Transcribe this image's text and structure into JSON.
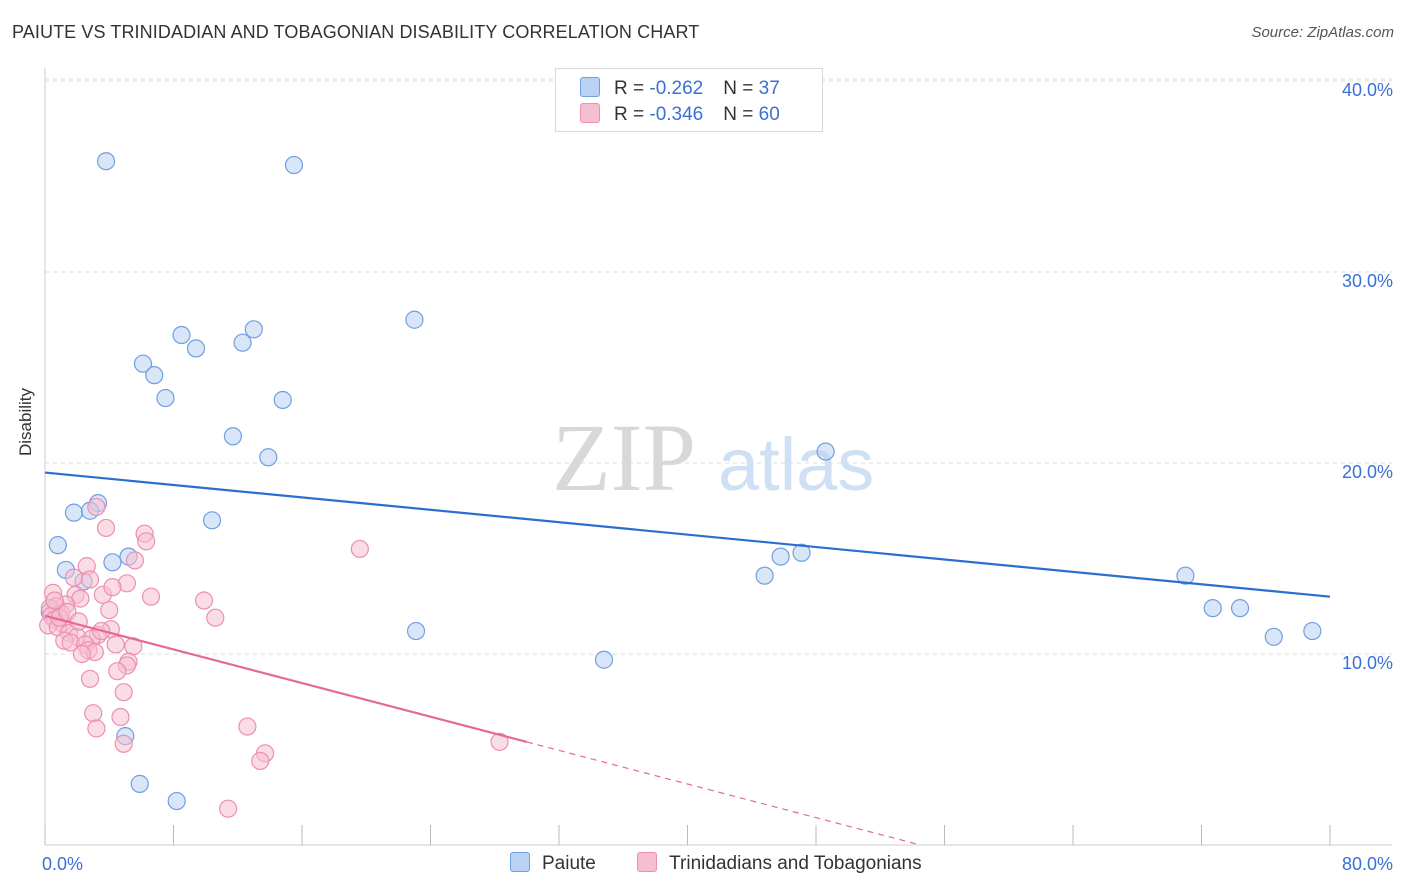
{
  "header": {
    "title": "PAIUTE VS TRINIDADIAN AND TOBAGONIAN DISABILITY CORRELATION CHART",
    "source": "Source: ZipAtlas.com"
  },
  "watermark": {
    "zip": "ZIP",
    "atlas": "atlas"
  },
  "legend": {
    "series1": {
      "r_label": "R = ",
      "r_value": "-0.262",
      "n_label": "N = ",
      "n_value": "37"
    },
    "series2": {
      "r_label": "R = ",
      "r_value": "-0.346",
      "n_label": "N = ",
      "n_value": "60"
    }
  },
  "colors": {
    "blue_fill": "#b9d1f2",
    "blue_stroke": "#6f9fe0",
    "blue_line": "#2a6fd0",
    "pink_fill": "#f6bfd0",
    "pink_stroke": "#ec8fb0",
    "pink_line": "#e46a95",
    "tick_label": "#3a6fd8",
    "grid": "#dddddd"
  },
  "chart_data": {
    "type": "scatter",
    "title": "PAIUTE VS TRINIDADIAN AND TOBAGONIAN DISABILITY CORRELATION CHART",
    "xlabel": "",
    "ylabel": "Disability",
    "xlim": [
      0,
      80
    ],
    "ylim": [
      0,
      40
    ],
    "x_tick_labels": [
      {
        "value": 0,
        "label": "0.0%"
      },
      {
        "value": 80,
        "label": "80.0%"
      }
    ],
    "y_tick_labels": [
      {
        "value": 10,
        "label": "10.0%"
      },
      {
        "value": 20,
        "label": "20.0%"
      },
      {
        "value": 30,
        "label": "30.0%"
      },
      {
        "value": 40,
        "label": "40.0%"
      }
    ],
    "x_minor_ticks": [
      0,
      8,
      16,
      24,
      32,
      40,
      48,
      56,
      64,
      72,
      80
    ],
    "grid": true,
    "series": [
      {
        "name": "Paiute",
        "color": "blue",
        "r": -0.262,
        "n": 37,
        "trend": {
          "x0": 0,
          "y0": 19.5,
          "x1": 80,
          "y1": 13.0,
          "dash_from": null
        },
        "points": [
          [
            3.8,
            35.8
          ],
          [
            15.5,
            35.6
          ],
          [
            23.0,
            27.5
          ],
          [
            13.0,
            27.0
          ],
          [
            8.5,
            26.7
          ],
          [
            12.3,
            26.3
          ],
          [
            9.4,
            26.0
          ],
          [
            6.1,
            25.2
          ],
          [
            6.8,
            24.6
          ],
          [
            7.5,
            23.4
          ],
          [
            14.8,
            23.3
          ],
          [
            11.7,
            21.4
          ],
          [
            13.9,
            20.3
          ],
          [
            48.6,
            20.6
          ],
          [
            3.3,
            17.9
          ],
          [
            1.8,
            17.4
          ],
          [
            2.8,
            17.5
          ],
          [
            10.4,
            17.0
          ],
          [
            0.8,
            15.7
          ],
          [
            5.2,
            15.1
          ],
          [
            4.2,
            14.8
          ],
          [
            1.3,
            14.4
          ],
          [
            45.8,
            15.1
          ],
          [
            47.1,
            15.3
          ],
          [
            44.8,
            14.1
          ],
          [
            71.0,
            14.1
          ],
          [
            2.4,
            13.8
          ],
          [
            72.7,
            12.4
          ],
          [
            74.4,
            12.4
          ],
          [
            23.1,
            11.2
          ],
          [
            76.5,
            10.9
          ],
          [
            78.9,
            11.2
          ],
          [
            34.8,
            9.7
          ],
          [
            5.0,
            5.7
          ],
          [
            5.9,
            3.2
          ],
          [
            8.2,
            2.3
          ],
          [
            0.3,
            12.2
          ]
        ]
      },
      {
        "name": "Trinidadians and Tobagonians",
        "color": "pink",
        "r": -0.346,
        "n": 60,
        "trend": {
          "x0": 0,
          "y0": 12.0,
          "x1": 54.5,
          "y1": 0.0,
          "dash_from": 30.0
        },
        "points": [
          [
            3.2,
            17.7
          ],
          [
            3.8,
            16.6
          ],
          [
            6.2,
            16.3
          ],
          [
            6.3,
            15.9
          ],
          [
            19.6,
            15.5
          ],
          [
            5.6,
            14.9
          ],
          [
            2.6,
            14.6
          ],
          [
            1.8,
            14.0
          ],
          [
            2.8,
            13.9
          ],
          [
            5.1,
            13.7
          ],
          [
            0.5,
            13.2
          ],
          [
            1.9,
            13.1
          ],
          [
            3.6,
            13.1
          ],
          [
            6.6,
            13.0
          ],
          [
            2.2,
            12.9
          ],
          [
            9.9,
            12.8
          ],
          [
            1.3,
            12.6
          ],
          [
            0.7,
            12.5
          ],
          [
            0.3,
            12.4
          ],
          [
            4.0,
            12.3
          ],
          [
            1.0,
            12.1
          ],
          [
            0.4,
            12.0
          ],
          [
            10.6,
            11.9
          ],
          [
            0.6,
            11.8
          ],
          [
            1.1,
            11.6
          ],
          [
            0.2,
            11.5
          ],
          [
            0.8,
            11.4
          ],
          [
            4.1,
            11.3
          ],
          [
            1.5,
            11.1
          ],
          [
            3.3,
            11.0
          ],
          [
            2.0,
            10.9
          ],
          [
            2.9,
            10.8
          ],
          [
            1.2,
            10.7
          ],
          [
            1.6,
            10.6
          ],
          [
            2.5,
            10.5
          ],
          [
            4.4,
            10.5
          ],
          [
            5.5,
            10.4
          ],
          [
            2.7,
            10.2
          ],
          [
            3.1,
            10.1
          ],
          [
            2.3,
            10.0
          ],
          [
            5.2,
            9.6
          ],
          [
            5.1,
            9.4
          ],
          [
            4.5,
            9.1
          ],
          [
            2.8,
            8.7
          ],
          [
            4.9,
            8.0
          ],
          [
            3.0,
            6.9
          ],
          [
            4.7,
            6.7
          ],
          [
            3.2,
            6.1
          ],
          [
            12.6,
            6.2
          ],
          [
            28.3,
            5.4
          ],
          [
            4.9,
            5.3
          ],
          [
            13.7,
            4.8
          ],
          [
            13.4,
            4.4
          ],
          [
            11.4,
            1.9
          ],
          [
            0.9,
            11.9
          ],
          [
            1.4,
            12.2
          ],
          [
            2.1,
            11.7
          ],
          [
            3.5,
            11.2
          ],
          [
            4.2,
            13.5
          ],
          [
            0.6,
            12.8
          ]
        ]
      }
    ]
  },
  "bottom_legend": {
    "item1": "Paiute",
    "item2": "Trinidadians and Tobagonians"
  }
}
